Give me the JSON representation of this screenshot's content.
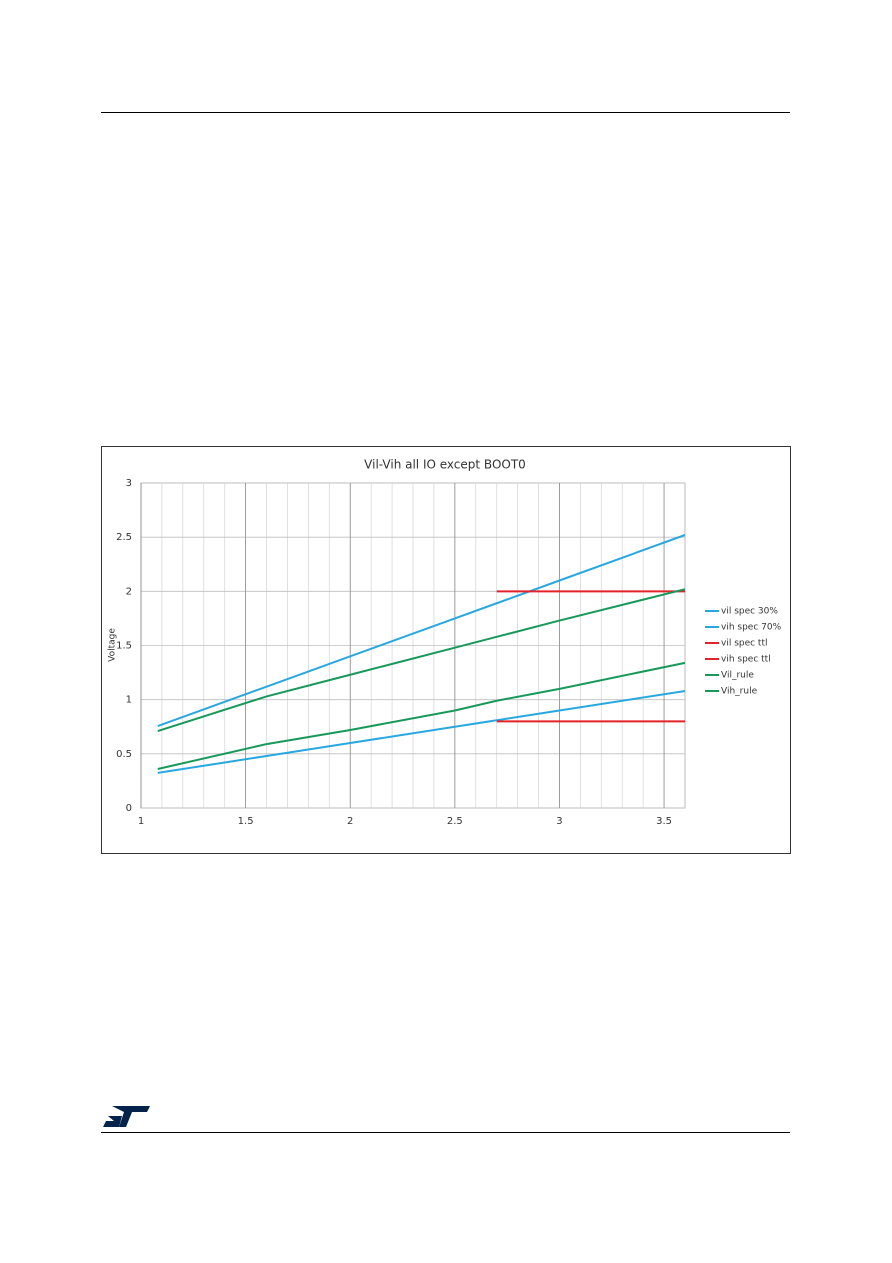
{
  "chart_data": {
    "type": "line",
    "title": "Vil-Vih all IO except BOOT0",
    "y_label": "Voltage",
    "x": [
      1.08,
      1.6,
      2,
      2.5,
      2.7,
      3,
      3.6
    ],
    "series": [
      {
        "name": "vil spec 30%",
        "color": "#29a8e0",
        "values": [
          0.324,
          0.48,
          0.6,
          0.75,
          0.81,
          0.9,
          1.08
        ]
      },
      {
        "name": "vih spec 70%",
        "color": "#29a8e0",
        "values": [
          0.756,
          1.12,
          1.4,
          1.75,
          1.89,
          2.1,
          2.52
        ]
      },
      {
        "name": "vil spec ttl",
        "color": "#e2232a",
        "values": [
          null,
          null,
          null,
          null,
          0.8,
          0.8,
          0.8
        ]
      },
      {
        "name": "vih spec ttl",
        "color": "#e2232a",
        "values": [
          null,
          null,
          null,
          null,
          2,
          2,
          2
        ]
      },
      {
        "name": "Vil_rule",
        "color": "#17995a",
        "values": [
          0.36,
          0.59,
          0.72,
          0.9,
          0.99,
          1.1,
          1.34
        ]
      },
      {
        "name": "Vih_rule",
        "color": "#17995a",
        "values": [
          0.71,
          1.03,
          1.23,
          1.48,
          1.58,
          1.73,
          2.02
        ]
      }
    ],
    "xlim": [
      1,
      3.6
    ],
    "xticks": [
      1,
      1.5,
      2,
      2.5,
      3,
      3.5
    ],
    "ylim": [
      0,
      3
    ],
    "yticks": [
      0,
      0.5,
      1,
      1.5,
      2,
      2.5,
      3
    ],
    "grid": true,
    "minor_grid": true,
    "legend": "right"
  }
}
